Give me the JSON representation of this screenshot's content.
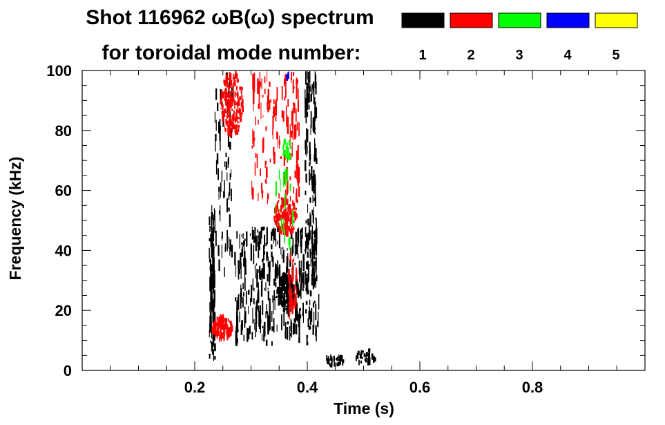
{
  "chart_data": {
    "type": "heatmap",
    "title_line1": "Shot 116962 ωB(ω) spectrum",
    "title_line2": "for toroidal mode number:",
    "xlabel": "Time (s)",
    "ylabel": "Frequency (kHz)",
    "xlim": [
      0.0,
      1.0
    ],
    "ylim": [
      0,
      100
    ],
    "x_ticks": [
      0.2,
      0.4,
      0.6,
      0.8
    ],
    "x_tick_labels": [
      "0.2",
      "0.4",
      "0.6",
      "0.8"
    ],
    "y_ticks": [
      0,
      20,
      40,
      60,
      80,
      100
    ],
    "y_tick_labels": [
      "0",
      "20",
      "40",
      "60",
      "80",
      "100"
    ],
    "x_minor_step": 0.05,
    "y_minor_step": 5,
    "legend": [
      {
        "label": "1",
        "color": "#000000"
      },
      {
        "label": "2",
        "color": "#ff0000"
      },
      {
        "label": "3",
        "color": "#00ff00"
      },
      {
        "label": "4",
        "color": "#0000ff"
      },
      {
        "label": "5",
        "color": "#ffff00"
      }
    ],
    "regions": [
      {
        "mode": 1,
        "t": [
          0.225,
          0.235
        ],
        "f": [
          3,
          58
        ],
        "n": 90,
        "style": "streaks"
      },
      {
        "mode": 1,
        "t": [
          0.235,
          0.265
        ],
        "f": [
          30,
          100
        ],
        "n": 70,
        "style": "streaks"
      },
      {
        "mode": 1,
        "t": [
          0.27,
          0.42
        ],
        "f": [
          8,
          48
        ],
        "n": 380,
        "style": "streaks"
      },
      {
        "mode": 1,
        "t": [
          0.345,
          0.375
        ],
        "f": [
          20,
          32
        ],
        "n": 140,
        "style": "blob"
      },
      {
        "mode": 1,
        "t": [
          0.395,
          0.415
        ],
        "f": [
          25,
          100
        ],
        "n": 130,
        "style": "streaks"
      },
      {
        "mode": 1,
        "t": [
          0.43,
          0.465
        ],
        "f": [
          1,
          5
        ],
        "n": 40,
        "style": "blob"
      },
      {
        "mode": 1,
        "t": [
          0.485,
          0.52
        ],
        "f": [
          2,
          7
        ],
        "n": 40,
        "style": "blob"
      },
      {
        "mode": 2,
        "t": [
          0.245,
          0.285
        ],
        "f": [
          78,
          100
        ],
        "n": 240,
        "style": "blob"
      },
      {
        "mode": 2,
        "t": [
          0.23,
          0.265
        ],
        "f": [
          10,
          18
        ],
        "n": 150,
        "style": "blob"
      },
      {
        "mode": 2,
        "t": [
          0.34,
          0.38
        ],
        "f": [
          45,
          58
        ],
        "n": 200,
        "style": "blob"
      },
      {
        "mode": 2,
        "t": [
          0.3,
          0.385
        ],
        "f": [
          55,
          100
        ],
        "n": 150,
        "style": "streaks"
      },
      {
        "mode": 2,
        "t": [
          0.365,
          0.38
        ],
        "f": [
          15,
          40
        ],
        "n": 35,
        "style": "streaks"
      },
      {
        "mode": 3,
        "t": [
          0.355,
          0.37
        ],
        "f": [
          70,
          77
        ],
        "n": 35,
        "style": "blob"
      },
      {
        "mode": 3,
        "t": [
          0.34,
          0.375
        ],
        "f": [
          40,
          68
        ],
        "n": 18,
        "style": "streaks"
      },
      {
        "mode": 4,
        "t": [
          0.36,
          0.367
        ],
        "f": [
          97,
          100
        ],
        "n": 10,
        "style": "blob"
      }
    ]
  }
}
